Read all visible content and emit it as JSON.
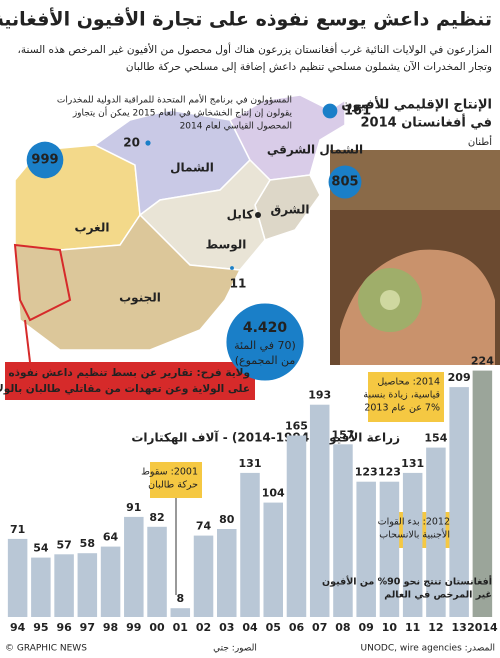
{
  "header": {
    "title": "تنظيم داعش يوسع نفوذه على تجارة الأفيون الأفغانية",
    "text": [
      "المزارعون في الولايات النائية غرب أفغانستان يزرعون هناك أول محصول من الأفيون غير المرخص هذه السنة،",
      "وتجار المخدرات الآن يشملون مسلحي تنظيم داعش إضافة إلى مسلحي حركة طالبان"
    ]
  },
  "note": [
    "المسؤولون في برنامج الأمم المتحدة للمراقبة الدولية للمخدرات",
    "يقولون إن إنتاج الخشخاش في العام 2015 يمكن أن يتجاوز",
    "المحصول القياسي لعام 2014"
  ],
  "map": {
    "title": [
      "الإنتاج الإقليمي للأفيون",
      "في أفغانستان 2014"
    ],
    "unit": "أطنان",
    "regions": [
      "الشمال الشرقي",
      "الشمال",
      "الغرب",
      "الشرق",
      "كابل",
      "الوسط",
      "الجنوب"
    ],
    "bubbles": [
      {
        "value": 999
      },
      {
        "value": 161
      },
      {
        "value": 805
      },
      {
        "value": 20
      },
      {
        "value": 11
      },
      {
        "value": 4420,
        "label": "4.420"
      }
    ],
    "share": [
      "(70 في المئة",
      "من المجموع)"
    ],
    "callout": [
      "ولاية فرح: تقارير عن بسط تنظيم داعش نفوذه",
      "على الولاية وعن تعهدات من مقاتلي طالبان بالولاء له"
    ],
    "color": "#1a7fc8"
  },
  "chart_data": {
    "type": "bar",
    "title": "زراعة الأفيون (1994-2014) - آلاف الهكتارات",
    "categories": [
      "94",
      "95",
      "96",
      "97",
      "98",
      "99",
      "00",
      "01",
      "02",
      "03",
      "04",
      "05",
      "06",
      "07",
      "08",
      "09",
      "10",
      "11",
      "12",
      "13",
      "2014"
    ],
    "values": [
      71,
      54,
      57,
      58,
      64,
      91,
      82,
      8,
      74,
      80,
      131,
      104,
      165,
      193,
      157,
      123,
      123,
      131,
      154,
      209,
      224
    ],
    "color": "#b9c7d6",
    "highlight_color": "#9ba59a",
    "annotations": [
      [
        "2001: سقوط",
        "حركة طالبان"
      ],
      [
        "2012: بدء القوات",
        "الأجنبية بالانسحاب"
      ],
      [
        "2014: محاصيل",
        "قياسية، زيادة بنسبة",
        "7% عن عام 2013"
      ],
      [
        "أفغانستان تنتج نحو 90% من الأفيون",
        "غير المرخص في العالم"
      ]
    ]
  },
  "footer": {
    "credit": "© GRAPHIC NEWS",
    "photo": "الصور: جتي",
    "source": "المصدر: UNODC, wire agencies"
  }
}
